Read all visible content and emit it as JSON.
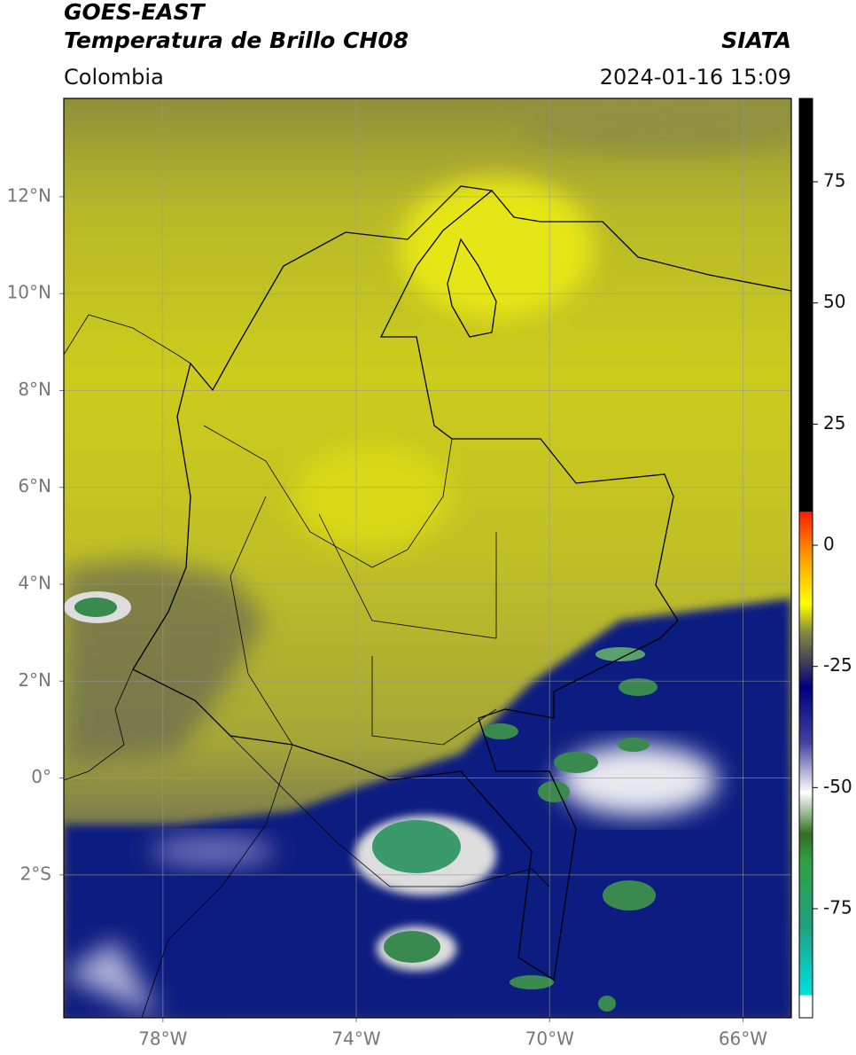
{
  "header": {
    "satellite": "GOES-EAST",
    "product": "Temperatura de Brillo CH08",
    "source": "SIATA",
    "region": "Colombia",
    "timestamp": "2024-01-16 15:09"
  },
  "map": {
    "lonlim": [
      -80.05,
      -65.0
    ],
    "latlim": [
      -4.95,
      14.03
    ],
    "grid": true,
    "lonticks": [
      {
        "value": -78,
        "label": "78°W"
      },
      {
        "value": -74,
        "label": "74°W"
      },
      {
        "value": -70,
        "label": "70°W"
      },
      {
        "value": -66,
        "label": "66°W"
      }
    ],
    "latticks": [
      {
        "value": 12,
        "label": "12°N"
      },
      {
        "value": 10,
        "label": "10°N"
      },
      {
        "value": 8,
        "label": "8°N"
      },
      {
        "value": 6,
        "label": "6°N"
      },
      {
        "value": 4,
        "label": "4°N"
      },
      {
        "value": 2,
        "label": "2°N"
      },
      {
        "value": 0,
        "label": "0°"
      },
      {
        "value": -2,
        "label": "2°S"
      }
    ]
  },
  "colorbar": {
    "lim": [
      -97.5,
      92.2
    ],
    "ticks": [
      75,
      50,
      25,
      0,
      -25,
      -50,
      -75
    ]
  }
}
